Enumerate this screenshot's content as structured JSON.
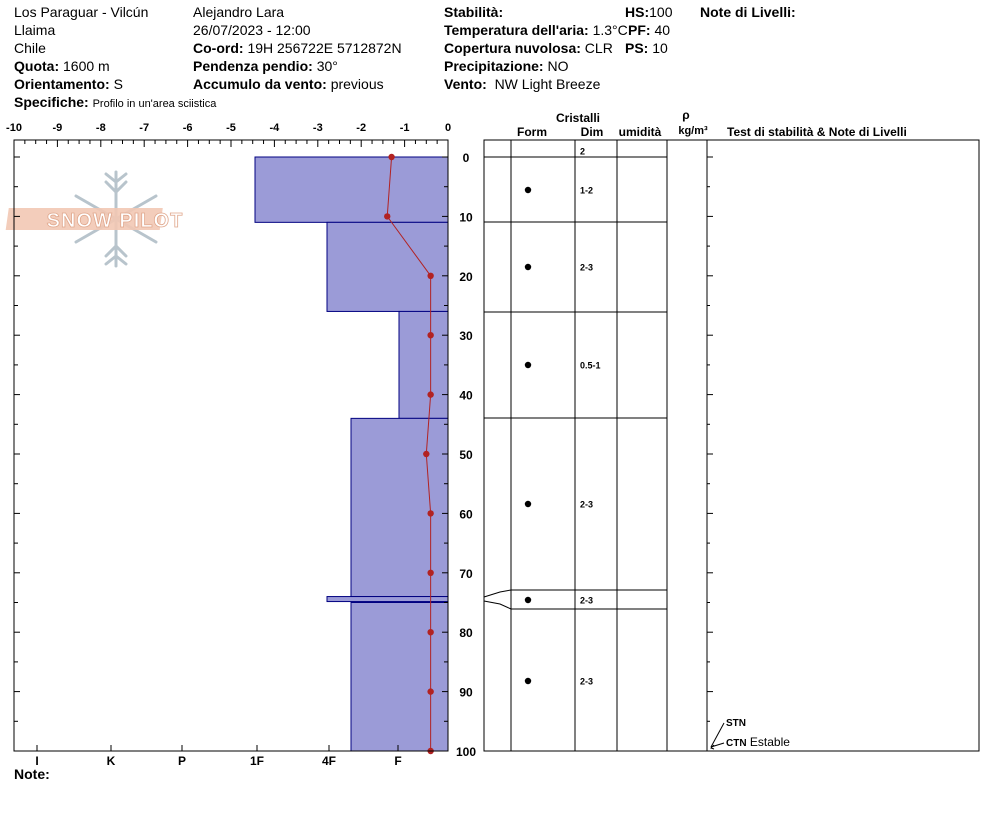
{
  "header": {
    "location": "Los Paraguar - Vilcún",
    "region": "Llaima",
    "country": "Chile",
    "elevation_label": "Quota:",
    "elevation_value": "1600 m",
    "aspect_label": "Orientamento:",
    "aspect_value": "S",
    "specifics_label": "Specifiche:",
    "specifics_value": "Profilo in un'area sciistica",
    "observer": "Alejandro Lara",
    "datetime": "26/07/2023 - 12:00",
    "coord_label": "Co-ord:",
    "coord_value": "19H 256722E 5712872N",
    "slope_label": "Pendenza pendio:",
    "slope_value": "30°",
    "wind_loading_label": "Accumulo da vento:",
    "wind_loading_value": "previous",
    "stability_label": "Stabilità:",
    "air_temp_label": "Temperatura dell'aria:",
    "air_temp_value": "1.3°C",
    "sky_label": "Copertura nuvolosa:",
    "sky_value": "CLR",
    "precip_label": "Precipitazione:",
    "precip_value": "NO",
    "wind_label": "Vento:",
    "wind_value": "NW Light Breeze",
    "hs_label": "HS:",
    "hs_value": "100",
    "pf_label": "PF:",
    "pf_value": "40",
    "ps_label": "PS:",
    "ps_value": "10",
    "layer_notes_label": "Note di Livelli:"
  },
  "footer": {
    "note_label": "Note:"
  },
  "logo_text": "SNOW PILOT",
  "table_headers": {
    "crystals": "Cristalli",
    "form": "Form",
    "size": "Dim",
    "moisture": "umidità",
    "rho": "ρ",
    "density_unit": "kg/m³",
    "stability_notes": "Test di stabilità & Note di Livelli"
  },
  "stability_tests": [
    {
      "code": "STN",
      "note": "",
      "depth": 96.5
    },
    {
      "code": "CTN",
      "note": "Estable",
      "depth": 100
    }
  ],
  "colors": {
    "hardness_fill": "#9b9bd7",
    "hardness_edge": "#000080",
    "temp_line": "#b22222"
  },
  "chart_data": {
    "type": "bar",
    "temperature_axis": {
      "ticks": [
        -10,
        -9,
        -8,
        -7,
        -6,
        -5,
        -4,
        -3,
        -2,
        -1,
        0
      ],
      "tick_labels": [
        "-10",
        "-9",
        "-8",
        "-7",
        "-6",
        "-5",
        "-4",
        "-3",
        "-2",
        "-1",
        "0"
      ],
      "range": [
        -10,
        0
      ]
    },
    "hardness_axis": {
      "labels": [
        "I",
        "K",
        "P",
        "1F",
        "4F",
        "F"
      ],
      "positions": [
        5,
        4,
        3,
        2,
        1,
        0
      ],
      "range": [
        6,
        0
      ]
    },
    "depth_axis": {
      "ticks": [
        0,
        10,
        20,
        30,
        40,
        50,
        60,
        70,
        80,
        90,
        100
      ],
      "tick_labels": [
        "0",
        "10",
        "20",
        "30",
        "40",
        "50",
        "60",
        "70",
        "80",
        "90",
        "100"
      ],
      "range": [
        0,
        100
      ],
      "grid": false
    },
    "hardness_layers": [
      {
        "top": 0,
        "bottom": 11,
        "hardness": 2
      },
      {
        "top": 11,
        "bottom": 26,
        "hardness": 1.3
      },
      {
        "top": 26,
        "bottom": 44,
        "hardness": 0.5
      },
      {
        "top": 44,
        "bottom": 74,
        "hardness": 1.0
      },
      {
        "top": 74,
        "bottom": 75,
        "hardness": 1.3
      },
      {
        "top": 75,
        "bottom": 100,
        "hardness": 1.0
      }
    ],
    "temperature_profile": {
      "depth": [
        0,
        10,
        20,
        30,
        40,
        50,
        60,
        70,
        80,
        90,
        100
      ],
      "temp": [
        -1.3,
        -1.4,
        -0.4,
        -0.4,
        -0.4,
        -0.5,
        -0.4,
        -0.4,
        -0.4,
        -0.4,
        -0.4
      ]
    },
    "crystal_layers": [
      {
        "top": 0,
        "bottom": 0,
        "size": "2",
        "form": ""
      },
      {
        "top": 0,
        "bottom": 11,
        "size": "1-2",
        "form": "round"
      },
      {
        "top": 11,
        "bottom": 26,
        "size": "2-3",
        "form": "round"
      },
      {
        "top": 26,
        "bottom": 44,
        "size": "0.5-1",
        "form": "round"
      },
      {
        "top": 44,
        "bottom": 73,
        "size": "2-3",
        "form": "round"
      },
      {
        "top": 73,
        "bottom": 76,
        "size": "2-3",
        "form": "round"
      },
      {
        "top": 76,
        "bottom": 100,
        "size": "2-3",
        "form": "round"
      }
    ]
  }
}
